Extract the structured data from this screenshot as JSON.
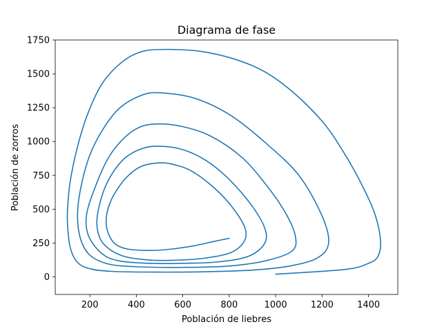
{
  "chart_data": {
    "type": "line",
    "title": "Diagrama de fase",
    "xlabel": "Población de liebres",
    "ylabel": "Población de zorros",
    "xlim": [
      51,
      1526
    ],
    "ylim": [
      -130,
      1750
    ],
    "xticks": [
      200,
      400,
      600,
      800,
      1000,
      1200,
      1400
    ],
    "yticks": [
      0,
      250,
      500,
      750,
      1000,
      1250,
      1500,
      1750
    ],
    "grid": false,
    "legend": "none",
    "line_color": "#1f77b4",
    "series": [
      {
        "points": [
          [
            1000,
            20
          ],
          [
            1300,
            55
          ],
          [
            1400,
            100
          ],
          [
            1440,
            150
          ],
          [
            1452,
            260
          ],
          [
            1430,
            450
          ],
          [
            1380,
            650
          ],
          [
            1300,
            900
          ],
          [
            1200,
            1150
          ],
          [
            1050,
            1400
          ],
          [
            900,
            1560
          ],
          [
            700,
            1660
          ],
          [
            500,
            1680
          ],
          [
            400,
            1650
          ],
          [
            320,
            1560
          ],
          [
            250,
            1420
          ],
          [
            190,
            1200
          ],
          [
            145,
            950
          ],
          [
            115,
            700
          ],
          [
            104,
            500
          ],
          [
            104,
            380
          ],
          [
            115,
            220
          ],
          [
            145,
            110
          ],
          [
            200,
            60
          ],
          [
            300,
            40
          ],
          [
            500,
            35
          ],
          [
            700,
            38
          ],
          [
            900,
            50
          ],
          [
            1060,
            80
          ],
          [
            1180,
            140
          ],
          [
            1228,
            250
          ],
          [
            1200,
            450
          ],
          [
            1100,
            750
          ],
          [
            950,
            1000
          ],
          [
            800,
            1200
          ],
          [
            650,
            1320
          ],
          [
            500,
            1360
          ],
          [
            420,
            1340
          ],
          [
            330,
            1250
          ],
          [
            260,
            1100
          ],
          [
            200,
            900
          ],
          [
            160,
            650
          ],
          [
            147,
            450
          ],
          [
            160,
            280
          ],
          [
            200,
            160
          ],
          [
            280,
            95
          ],
          [
            400,
            75
          ],
          [
            600,
            70
          ],
          [
            800,
            80
          ],
          [
            960,
            120
          ],
          [
            1070,
            190
          ],
          [
            1085,
            300
          ],
          [
            1040,
            480
          ],
          [
            950,
            700
          ],
          [
            850,
            890
          ],
          [
            720,
            1040
          ],
          [
            600,
            1110
          ],
          [
            500,
            1130
          ],
          [
            420,
            1110
          ],
          [
            350,
            1030
          ],
          [
            280,
            880
          ],
          [
            220,
            650
          ],
          [
            185,
            450
          ],
          [
            195,
            300
          ],
          [
            250,
            175
          ],
          [
            320,
            120
          ],
          [
            450,
            100
          ],
          [
            600,
            100
          ],
          [
            750,
            110
          ],
          [
            880,
            150
          ],
          [
            950,
            240
          ],
          [
            955,
            350
          ],
          [
            900,
            520
          ],
          [
            800,
            720
          ],
          [
            700,
            860
          ],
          [
            600,
            940
          ],
          [
            500,
            965
          ],
          [
            420,
            945
          ],
          [
            340,
            860
          ],
          [
            270,
            680
          ],
          [
            232,
            450
          ],
          [
            240,
            300
          ],
          [
            280,
            210
          ],
          [
            350,
            150
          ],
          [
            450,
            125
          ],
          [
            550,
            122
          ],
          [
            680,
            135
          ],
          [
            800,
            175
          ],
          [
            860,
            250
          ],
          [
            870,
            350
          ],
          [
            820,
            500
          ],
          [
            740,
            650
          ],
          [
            640,
            780
          ],
          [
            560,
            830
          ],
          [
            500,
            842
          ],
          [
            420,
            815
          ],
          [
            350,
            720
          ],
          [
            290,
            560
          ],
          [
            270,
            400
          ],
          [
            295,
            270
          ],
          [
            350,
            210
          ],
          [
            450,
            195
          ],
          [
            550,
            205
          ],
          [
            650,
            230
          ],
          [
            730,
            260
          ],
          [
            800,
            285
          ]
        ]
      }
    ]
  }
}
